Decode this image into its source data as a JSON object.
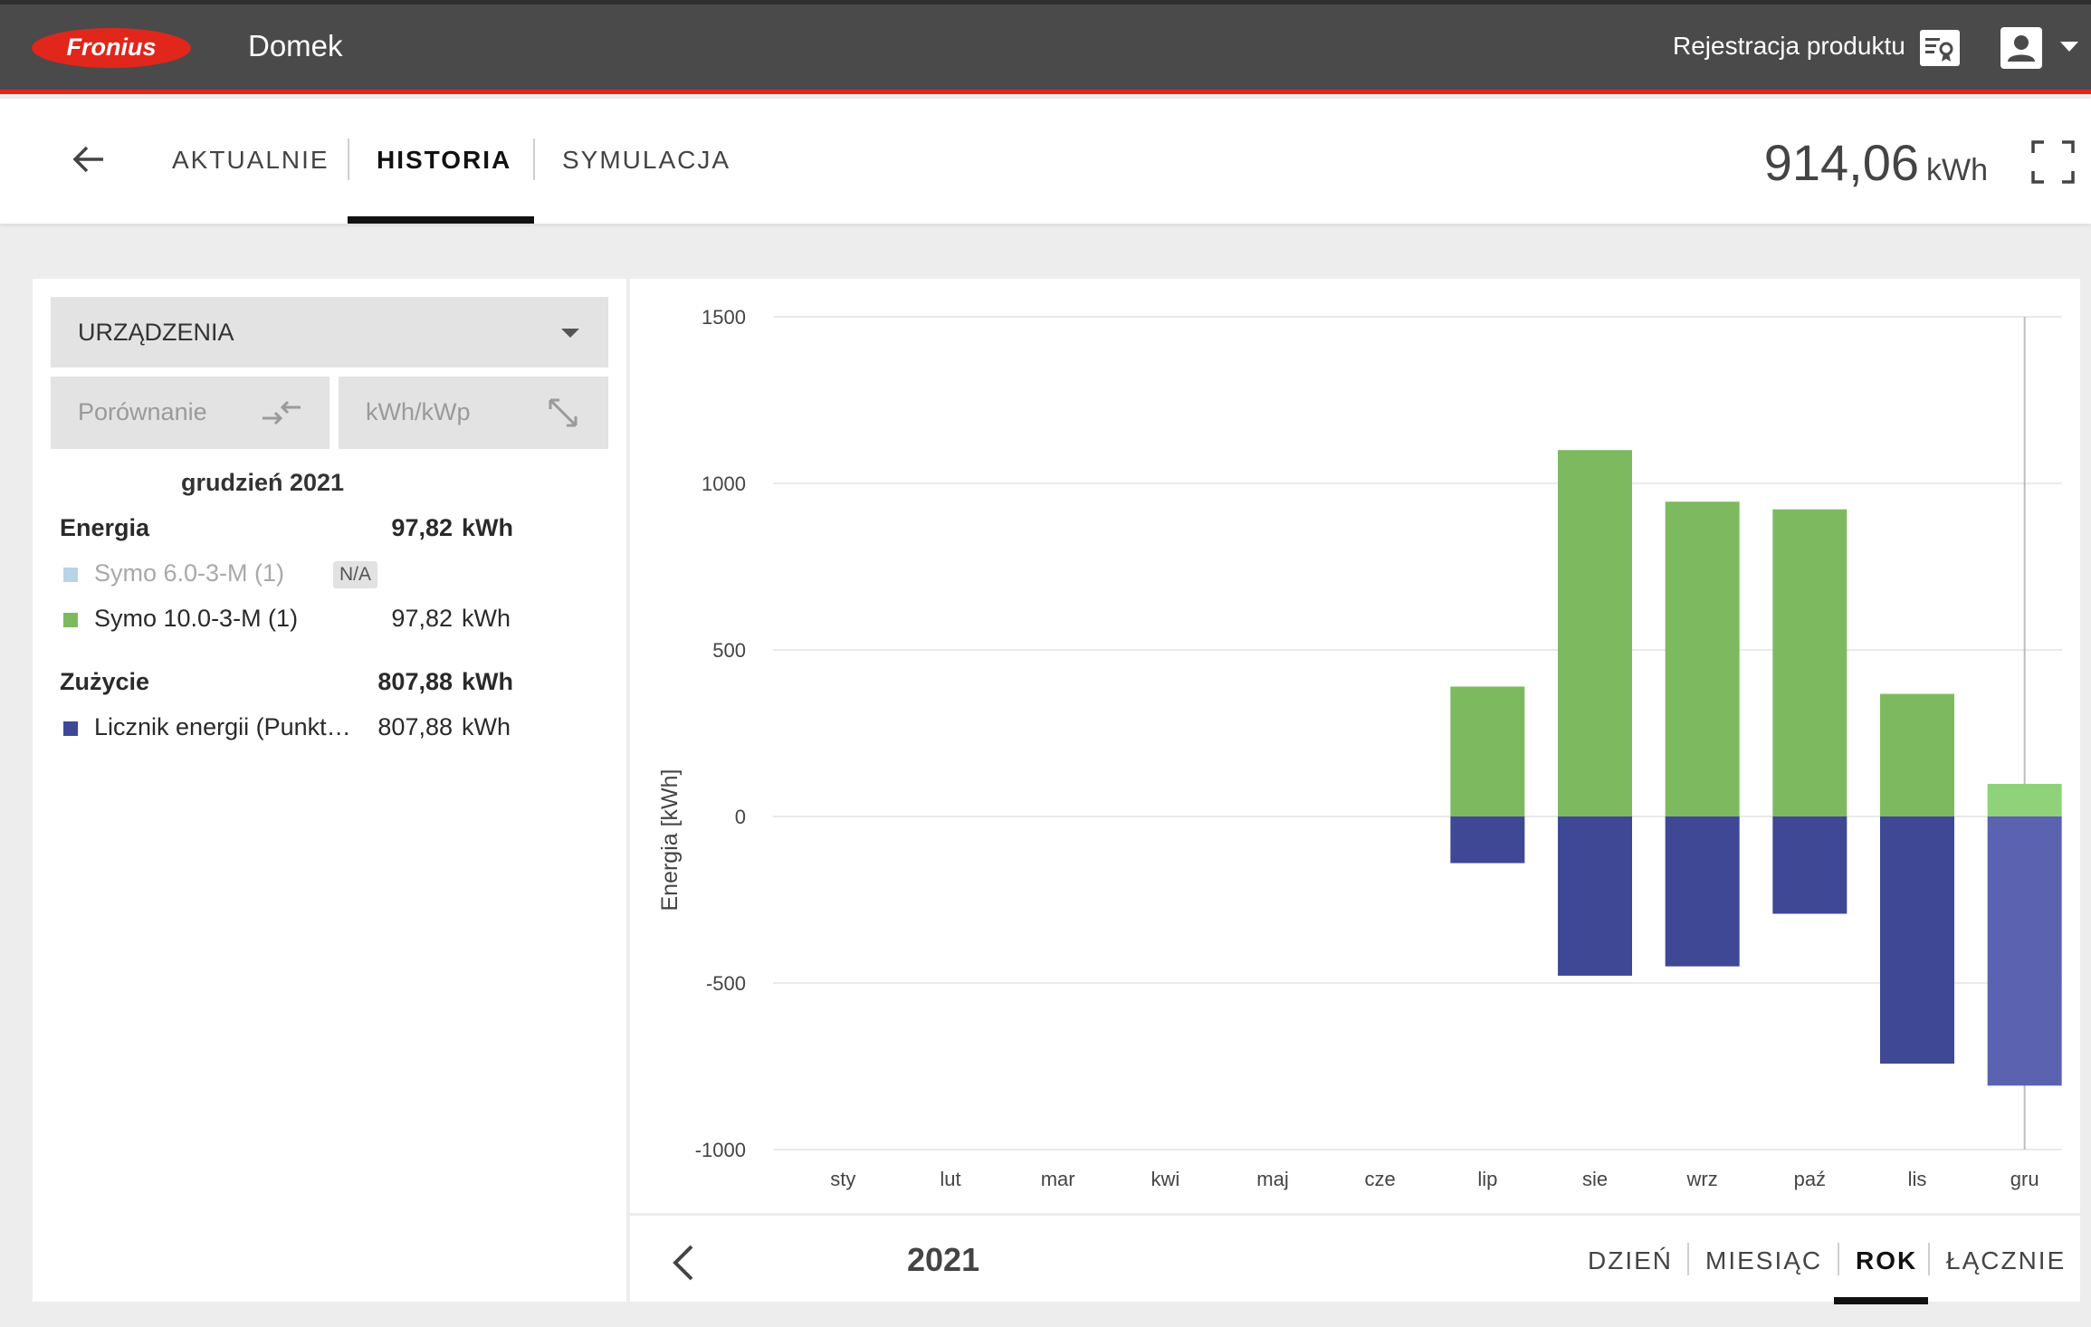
{
  "header": {
    "logo_text": "Fronius",
    "app_name": "Domek",
    "register_label": "Rejestracja produktu"
  },
  "nav": {
    "tabs": [
      {
        "label": "AKTUALNIE",
        "active": false
      },
      {
        "label": "HISTORIA",
        "active": true
      },
      {
        "label": "SYMULACJA",
        "active": false
      }
    ],
    "total_value": "914,06",
    "total_unit": "kWh"
  },
  "left_panel": {
    "dropdown_label": "URZĄDZENIA",
    "compare_label": "Porównanie",
    "specific_label": "kWh/kWp",
    "period": "grudzień 2021",
    "energy": {
      "label": "Energia",
      "value": "97,82",
      "unit": "kWh",
      "items": [
        {
          "name": "Symo 6.0-3-M (1)",
          "badge": "N/A",
          "value": "",
          "unit": "",
          "color": "#b8d4e6"
        },
        {
          "name": "Symo 10.0-3-M (1)",
          "value": "97,82",
          "unit": "kWh",
          "color": "#7dba5f"
        }
      ]
    },
    "consumption": {
      "label": "Zużycie",
      "value": "807,88",
      "unit": "kWh",
      "items": [
        {
          "name": "Licznik energii (Punkt…",
          "value": "807,88",
          "unit": "kWh",
          "color": "#3f4895"
        }
      ]
    }
  },
  "chart_data": {
    "type": "bar",
    "stacked": true,
    "categories": [
      "sty",
      "lut",
      "mar",
      "kwi",
      "maj",
      "cze",
      "lip",
      "sie",
      "wrz",
      "paź",
      "lis",
      "gru"
    ],
    "series": [
      {
        "name": "Symo 10.0-3-M (1)",
        "color": "#7dba5f",
        "highlight_color": "#8fd27a",
        "values": [
          0,
          0,
          0,
          0,
          0,
          0,
          390,
          1100,
          945,
          922,
          368,
          98
        ]
      },
      {
        "name": "Licznik energii (Punkt…",
        "color": "#3f4895",
        "highlight_color": "#5b62b0",
        "values": [
          0,
          0,
          0,
          0,
          0,
          0,
          -140,
          -478,
          -450,
          -292,
          -742,
          -808
        ]
      }
    ],
    "highlighted_category": "gru",
    "ylabel": "Energia [kWh]",
    "xlabel": "",
    "ylim": [
      -1000,
      1500
    ],
    "yticks": [
      1500,
      1000,
      500,
      0,
      -500,
      -1000
    ],
    "grid": true
  },
  "footer": {
    "year": "2021",
    "period_tabs": [
      {
        "label": "DZIEŃ",
        "active": false
      },
      {
        "label": "MIESIĄC",
        "active": false
      },
      {
        "label": "ROK",
        "active": true
      },
      {
        "label": "ŁĄCZNIE",
        "active": false
      }
    ]
  },
  "colors": {
    "brand_red": "#e1261c",
    "topbar": "#4a4a4a"
  }
}
